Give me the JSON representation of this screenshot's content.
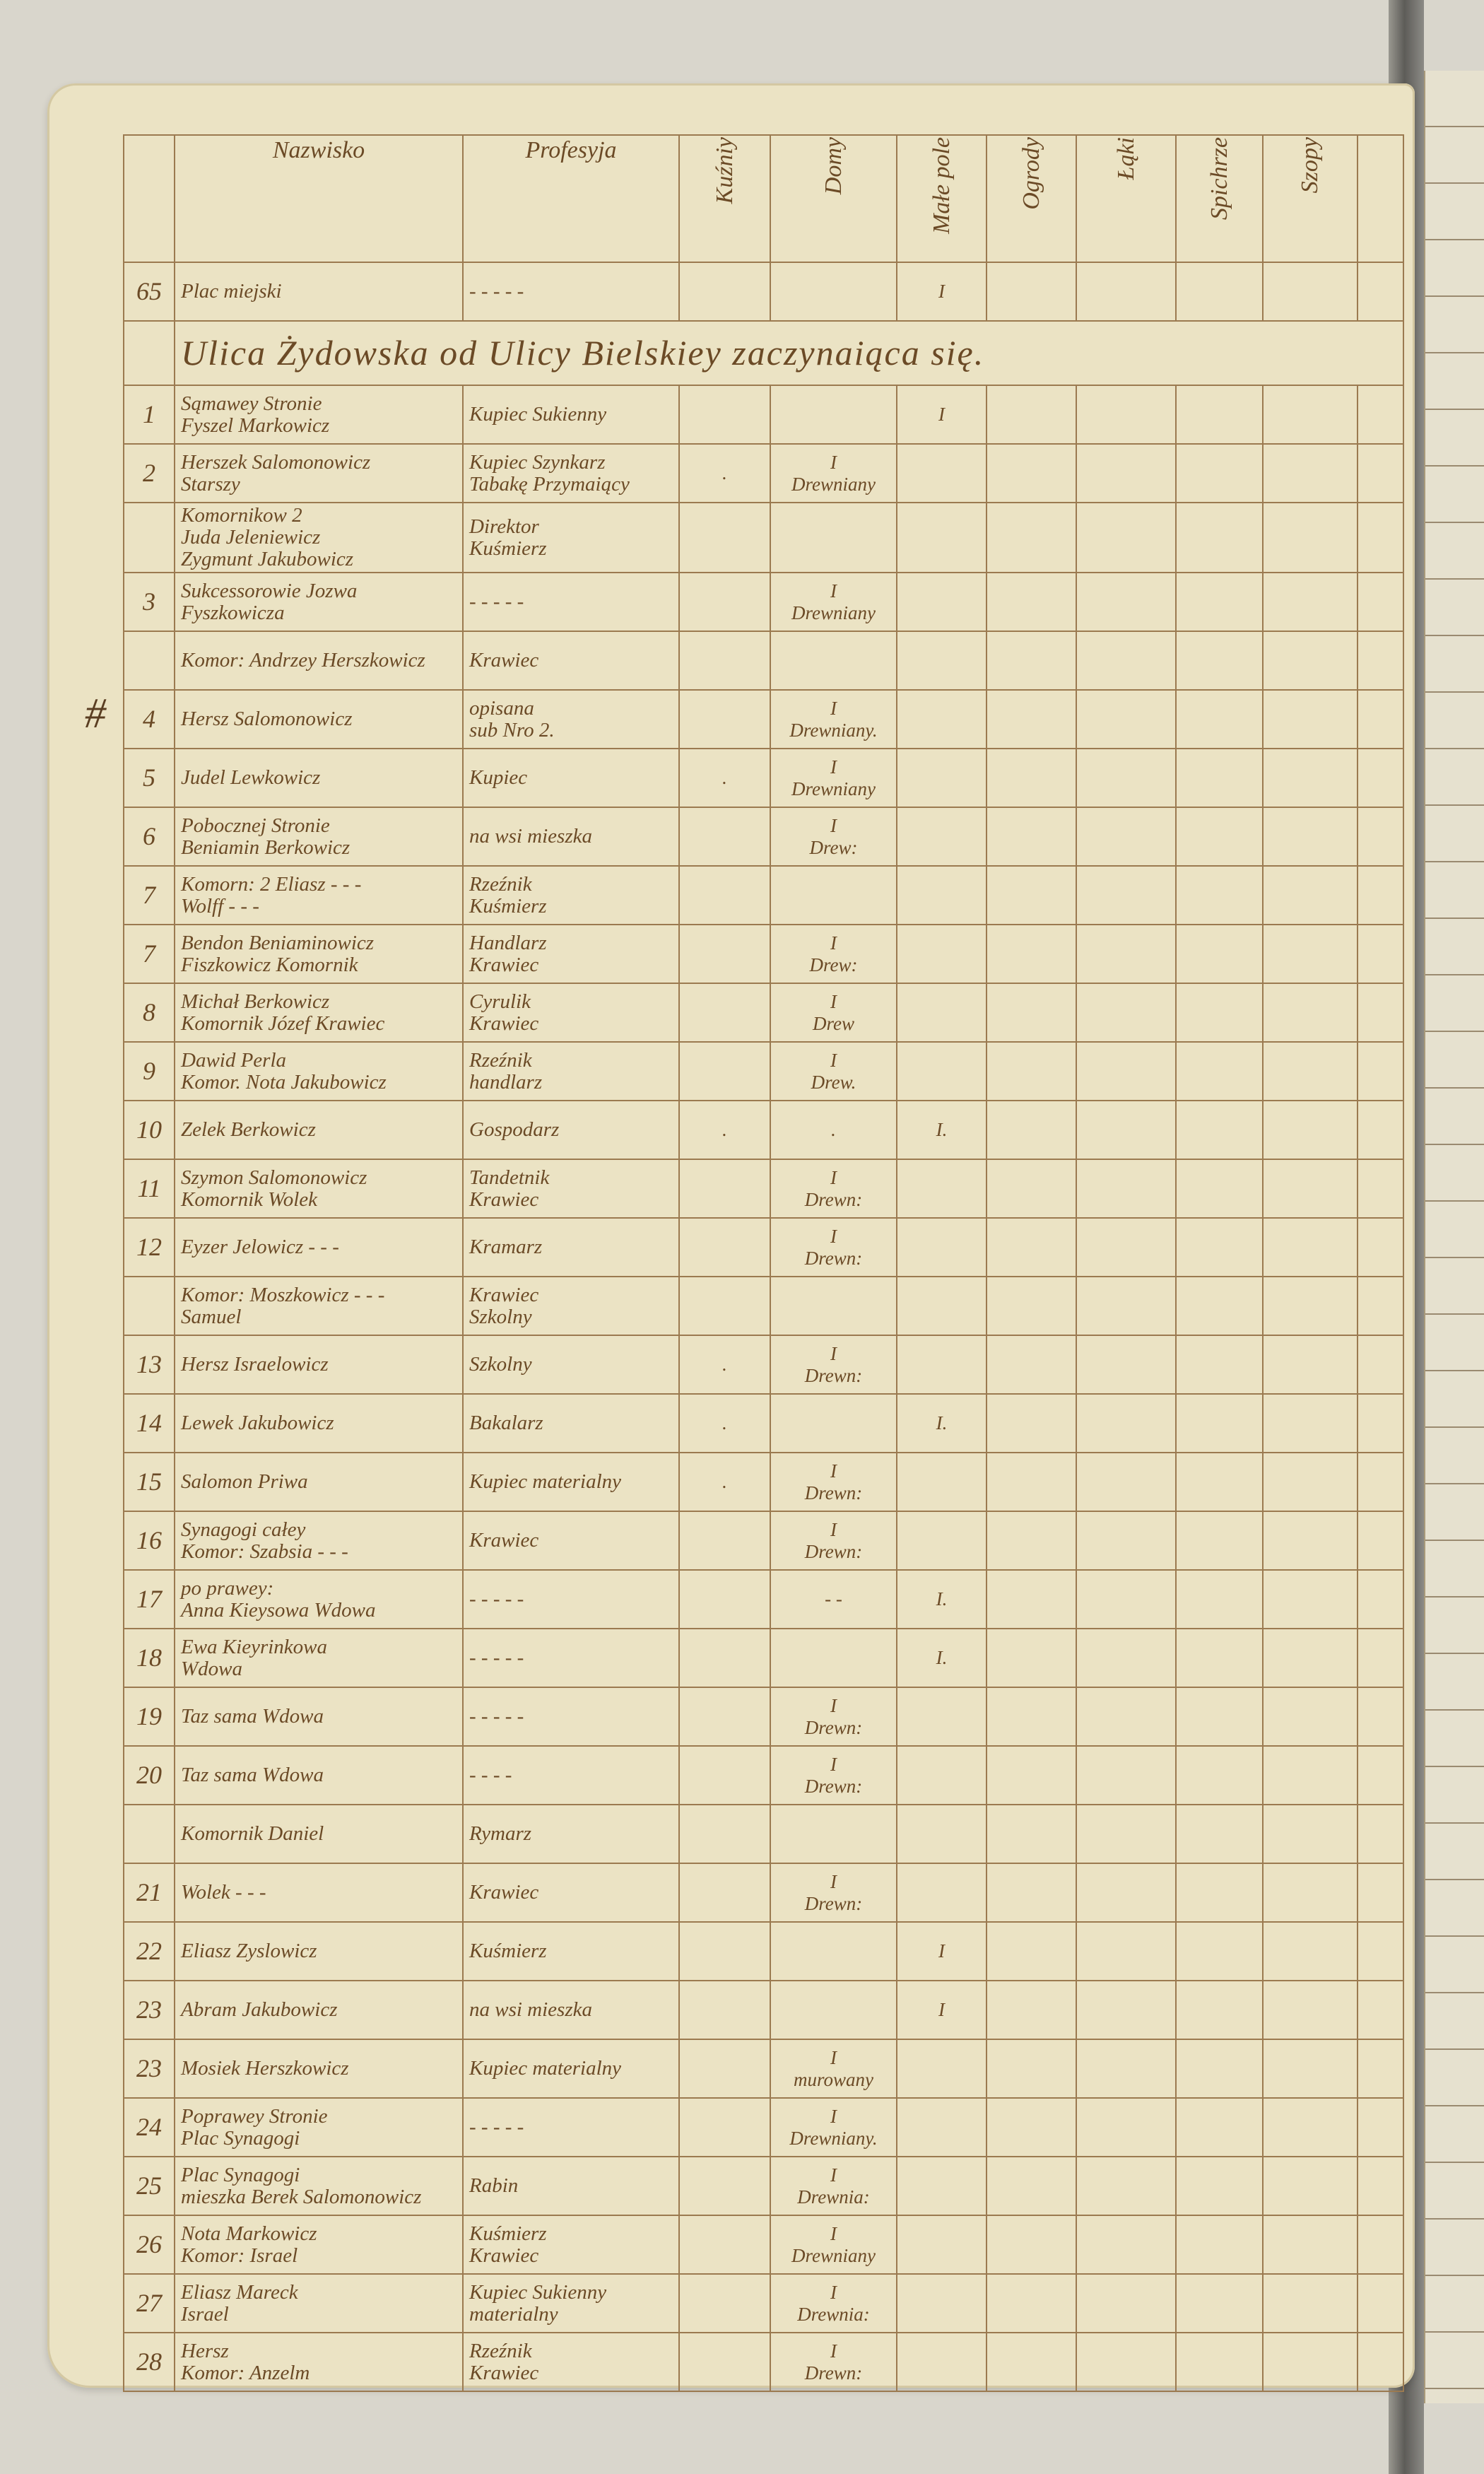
{
  "header": {
    "columns": [
      "Nazwisko",
      "Profesyja",
      "Kuźniy",
      "Domy",
      "Małe pole",
      "Ogrody",
      "Łąki",
      "Spichrze",
      "Szopy"
    ]
  },
  "margin_mark": "#",
  "rows": [
    {
      "no": "65",
      "name": "Plac miejski",
      "profession": "- - - - -",
      "male_pole": "I"
    },
    {
      "section": "Ulica Żydowska od Ulicy Bielskiey zaczynaiąca się."
    },
    {
      "no": "1",
      "name": "Sąmawey Stronie\nFyszel Markowicz",
      "profession": "Kupiec Sukienny",
      "male_pole": "I"
    },
    {
      "no": "2",
      "name": "Herszek Salomonowicz\nStarszy",
      "profession": "Kupiec Szynkarz\nTabakę Przymaiący",
      "kuznie": ".",
      "domy": "I\nDrewniany"
    },
    {
      "name": "Komornikow 2\nJuda Jeleniewicz\nZygmunt Jakubowicz",
      "profession": "Direktor\nKuśmierz"
    },
    {
      "no": "3",
      "name": "Sukcessorowie Jozwa\nFyszkowicza",
      "profession": "- - - - -",
      "domy": "I\nDrewniany"
    },
    {
      "name": "Komor: Andrzey Herszkowicz",
      "profession": "Krawiec"
    },
    {
      "no": "4",
      "name": "Hersz Salomonowicz",
      "profession": "opisana\nsub Nro 2.",
      "domy": "I\nDrewniany."
    },
    {
      "no": "5",
      "name": "Judel Lewkowicz",
      "profession": "Kupiec",
      "kuznie": ".",
      "domy": "I\nDrewniany"
    },
    {
      "no": "6",
      "name": "Pobocznej Stronie\nBeniamin Berkowicz",
      "profession": "na wsi mieszka",
      "domy": "I\nDrew:"
    },
    {
      "no": "7",
      "name": "Komorn: 2 Eliasz - - -\nWolff - - -",
      "profession": "Rzeźnik\nKuśmierz"
    },
    {
      "no": "7",
      "name": "Bendon Beniaminowicz\nFiszkowicz Komornik",
      "profession": "Handlarz\nKrawiec",
      "domy": "I\nDrew:"
    },
    {
      "no": "8",
      "name": "Michał Berkowicz\nKomornik Józef Krawiec",
      "profession": "Cyrulik\nKrawiec",
      "domy": "I\nDrew"
    },
    {
      "no": "9",
      "name": "Dawid Perla\nKomor. Nota Jakubowicz",
      "profession": "Rzeźnik\nhandlarz",
      "domy": "I\nDrew."
    },
    {
      "no": "10",
      "name": "Zelek Berkowicz",
      "profession": "Gospodarz",
      "kuznie": ".",
      "domy": ".",
      "male_pole": "I."
    },
    {
      "no": "11",
      "name": "Szymon Salomonowicz\nKomornik Wolek",
      "profession": "Tandetnik\nKrawiec",
      "domy": "I\nDrewn:"
    },
    {
      "no": "12",
      "name": "Eyzer Jelowicz - - -",
      "profession": "Kramarz",
      "domy": "I\nDrewn:"
    },
    {
      "name": "Komor: Moszkowicz - - -\nSamuel",
      "profession": "Krawiec\nSzkolny"
    },
    {
      "no": "13",
      "name": "Hersz Israelowicz",
      "profession": "Szkolny",
      "kuznie": ".",
      "domy": "I\nDrewn:"
    },
    {
      "no": "14",
      "name": "Lewek Jakubowicz",
      "profession": "Bakalarz",
      "kuznie": ".",
      "male_pole": "I."
    },
    {
      "no": "15",
      "name": "Salomon Priwa",
      "profession": "Kupiec materialny",
      "kuznie": ".",
      "domy": "I\nDrewn:"
    },
    {
      "no": "16",
      "name": "Synagogi całey\nKomor: Szabsia - - -",
      "profession": "Krawiec",
      "domy": "I\nDrewn:"
    },
    {
      "no": "17",
      "name": "po prawey:\nAnna Kieysowa Wdowa",
      "profession": "- - - - -",
      "domy": "- -",
      "male_pole": "I."
    },
    {
      "no": "18",
      "name": "Ewa Kieyrinkowa\nWdowa",
      "profession": "- - - - -",
      "male_pole": "I."
    },
    {
      "no": "19",
      "name": "Taz sama Wdowa",
      "profession": "- - - - -",
      "domy": "I\nDrewn:"
    },
    {
      "no": "20",
      "name": "Taz sama Wdowa",
      "profession": "- - - -",
      "domy": "I\nDrewn:"
    },
    {
      "name": "Komornik Daniel",
      "profession": "Rymarz"
    },
    {
      "no": "21",
      "name": "Wolek - - -",
      "profession": "Krawiec",
      "domy": "I\nDrewn:"
    },
    {
      "no": "22",
      "name": "Eliasz Zyslowicz",
      "profession": "Kuśmierz",
      "male_pole": "I"
    },
    {
      "no": "23",
      "name": "Abram Jakubowicz",
      "profession": "na wsi mieszka",
      "male_pole": "I"
    },
    {
      "no": "23",
      "name": "Mosiek Herszkowicz",
      "profession": "Kupiec materialny",
      "domy": "I\nmurowany"
    },
    {
      "no": "24",
      "name": "Poprawey Stronie\nPlac Synagogi",
      "profession": "- - - - -",
      "domy": "I\nDrewniany."
    },
    {
      "no": "25",
      "name": "Plac Synagogi\nmieszka Berek Salomonowicz",
      "profession": "Rabin",
      "domy": "I\nDrewnia:"
    },
    {
      "no": "26",
      "name": "Nota Markowicz\nKomor: Israel",
      "profession": "Kuśmierz\nKrawiec",
      "domy": "I\nDrewniany"
    },
    {
      "no": "27",
      "name": "Eliasz Mareck\nIsrael",
      "profession": "Kupiec Sukienny\nmaterialny",
      "domy": "I\nDrewnia:"
    },
    {
      "no": "28",
      "name": "Hersz\nKomor: Anzelm",
      "profession": "Rzeźnik\nKrawiec",
      "domy": "I\nDrewn:"
    }
  ]
}
